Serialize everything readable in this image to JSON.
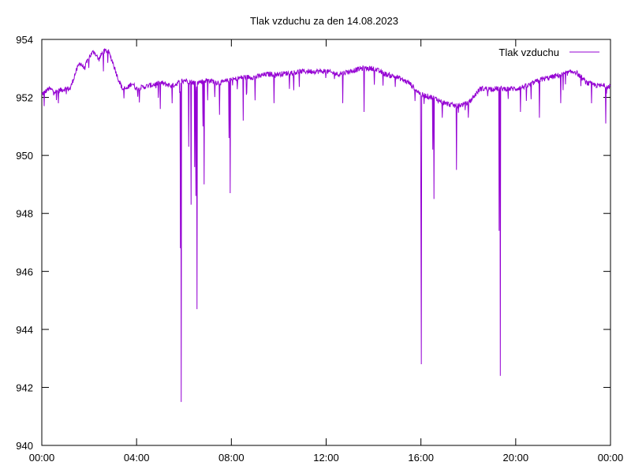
{
  "chart_data": {
    "type": "line",
    "title": "Tlak vzduchu za den 14.08.2023",
    "xlabel": "",
    "ylabel": "",
    "legend_position": "top-right",
    "grid": false,
    "x_ticks": [
      "00:00",
      "04:00",
      "08:00",
      "12:00",
      "16:00",
      "20:00",
      "00:00"
    ],
    "y_ticks": [
      "940",
      "942",
      "944",
      "946",
      "948",
      "950",
      "952",
      "954"
    ],
    "xlim_hours": [
      0,
      24
    ],
    "ylim": [
      940,
      954
    ],
    "series": [
      {
        "name": "Tlak vzduchu",
        "color": "#9400d3",
        "baseline": [
          [
            0.0,
            952.1
          ],
          [
            0.3,
            952.3
          ],
          [
            0.6,
            952.2
          ],
          [
            1.0,
            952.3
          ],
          [
            1.2,
            952.3
          ],
          [
            1.4,
            952.8
          ],
          [
            1.6,
            953.2
          ],
          [
            1.8,
            953.0
          ],
          [
            2.0,
            953.4
          ],
          [
            2.2,
            953.6
          ],
          [
            2.4,
            953.3
          ],
          [
            2.6,
            953.6
          ],
          [
            2.8,
            953.6
          ],
          [
            3.0,
            953.2
          ],
          [
            3.2,
            952.7
          ],
          [
            3.4,
            952.3
          ],
          [
            3.6,
            952.3
          ],
          [
            3.8,
            952.5
          ],
          [
            4.0,
            952.3
          ],
          [
            4.5,
            952.4
          ],
          [
            5.0,
            952.5
          ],
          [
            5.5,
            952.4
          ],
          [
            6.0,
            952.6
          ],
          [
            6.5,
            952.5
          ],
          [
            7.0,
            952.6
          ],
          [
            7.5,
            952.5
          ],
          [
            8.0,
            952.6
          ],
          [
            8.5,
            952.7
          ],
          [
            9.0,
            952.7
          ],
          [
            9.5,
            952.8
          ],
          [
            10.0,
            952.8
          ],
          [
            11.0,
            952.9
          ],
          [
            12.0,
            952.9
          ],
          [
            12.5,
            952.8
          ],
          [
            13.0,
            952.9
          ],
          [
            13.5,
            953.0
          ],
          [
            14.0,
            953.0
          ],
          [
            14.5,
            952.8
          ],
          [
            15.0,
            952.7
          ],
          [
            15.5,
            952.5
          ],
          [
            16.0,
            952.1
          ],
          [
            16.5,
            952.0
          ],
          [
            17.0,
            951.8
          ],
          [
            17.5,
            951.7
          ],
          [
            18.0,
            951.8
          ],
          [
            18.5,
            952.3
          ],
          [
            19.0,
            952.3
          ],
          [
            19.5,
            952.3
          ],
          [
            20.0,
            952.3
          ],
          [
            20.5,
            952.4
          ],
          [
            21.0,
            952.6
          ],
          [
            21.5,
            952.7
          ],
          [
            22.0,
            952.8
          ],
          [
            22.5,
            952.9
          ],
          [
            23.0,
            952.5
          ],
          [
            23.5,
            952.4
          ],
          [
            24.0,
            952.4
          ]
        ],
        "dips": [
          [
            0.1,
            951.7
          ],
          [
            0.7,
            951.8
          ],
          [
            2.6,
            952.9
          ],
          [
            5.0,
            951.6
          ],
          [
            5.5,
            951.8
          ],
          [
            5.85,
            946.8
          ],
          [
            5.88,
            941.5
          ],
          [
            6.2,
            950.3
          ],
          [
            6.3,
            948.3
          ],
          [
            6.45,
            949.6
          ],
          [
            6.5,
            948.6
          ],
          [
            6.55,
            944.7
          ],
          [
            6.8,
            951.0
          ],
          [
            6.85,
            949.0
          ],
          [
            7.0,
            951.9
          ],
          [
            7.5,
            951.4
          ],
          [
            7.9,
            950.6
          ],
          [
            7.95,
            948.7
          ],
          [
            8.5,
            951.2
          ],
          [
            9.0,
            951.9
          ],
          [
            9.8,
            951.8
          ],
          [
            12.7,
            951.8
          ],
          [
            13.6,
            951.5
          ],
          [
            16.0,
            947.5
          ],
          [
            16.02,
            942.8
          ],
          [
            16.5,
            950.2
          ],
          [
            16.55,
            948.5
          ],
          [
            16.9,
            951.3
          ],
          [
            17.5,
            949.5
          ],
          [
            18.0,
            951.3
          ],
          [
            19.3,
            947.4
          ],
          [
            19.35,
            942.4
          ],
          [
            20.2,
            951.5
          ],
          [
            21.0,
            951.3
          ],
          [
            21.9,
            951.8
          ],
          [
            23.2,
            951.8
          ],
          [
            23.8,
            951.1
          ]
        ]
      }
    ]
  }
}
